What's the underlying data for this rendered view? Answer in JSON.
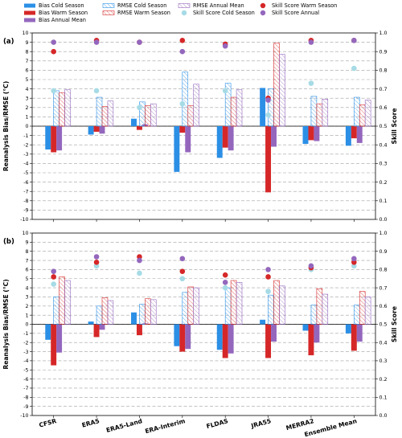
{
  "chart_data": [
    {
      "type": "bar",
      "panel_label": "(a)",
      "ylabel": "Reanalysis Bias/RMSE (°C)",
      "y2label": "Skill Score",
      "ylim": [
        -10,
        10
      ],
      "y2lim": [
        0.0,
        1.0
      ],
      "grid": "horizontal-dashed",
      "legend": "top",
      "categories": [
        "CFSR",
        "ERA5",
        "ERA5-Land",
        "ERA-Interim",
        "FLDAS",
        "JRA55",
        "MERRA2",
        "Ensemble Mean"
      ],
      "series": [
        {
          "name": "Bias Cold Season",
          "kind": "bar",
          "color": "#2b8fe6",
          "values": [
            -2.5,
            -0.9,
            0.8,
            -4.9,
            -3.4,
            4.1,
            -1.9,
            -2.1
          ]
        },
        {
          "name": "Bias Warm Season",
          "kind": "bar",
          "color": "#d62728",
          "values": [
            -2.8,
            -0.6,
            -0.4,
            -0.7,
            -2.3,
            -7.1,
            -1.5,
            -1.3
          ]
        },
        {
          "name": "Bias Annual Mean",
          "kind": "bar",
          "color": "#9467bd",
          "values": [
            -2.6,
            -0.8,
            0.2,
            -2.8,
            -2.6,
            -2.2,
            -1.6,
            -1.8
          ]
        },
        {
          "name": "RMSE Cold Season",
          "kind": "hatched",
          "color": "#2b8fe6",
          "values": [
            3.8,
            3.1,
            2.6,
            5.8,
            4.6,
            4.0,
            3.2,
            3.1
          ]
        },
        {
          "name": "RMSE Warm Season",
          "kind": "hatched",
          "color": "#d62728",
          "values": [
            3.6,
            2.1,
            2.2,
            2.2,
            3.1,
            8.9,
            2.4,
            2.3
          ]
        },
        {
          "name": "RMSE Annual Mean",
          "kind": "hatched",
          "color": "#9467bd",
          "values": [
            3.9,
            2.7,
            2.4,
            4.5,
            3.9,
            7.7,
            2.9,
            2.8
          ]
        },
        {
          "name": "Skill Score Cold Season",
          "kind": "dot",
          "color": "#a6dbe6",
          "values": [
            0.69,
            0.69,
            0.6,
            0.62,
            0.69,
            0.56,
            0.73,
            0.81
          ]
        },
        {
          "name": "Skill Score Warm Season",
          "kind": "dot",
          "color": "#d62728",
          "values": [
            0.9,
            0.96,
            0.95,
            0.96,
            0.94,
            0.65,
            0.96,
            0.96
          ]
        },
        {
          "name": "Skill Score Annual",
          "kind": "dot",
          "color": "#9467bd",
          "values": [
            0.95,
            0.95,
            0.95,
            0.9,
            0.93,
            0.64,
            0.95,
            0.96
          ]
        }
      ]
    },
    {
      "type": "bar",
      "panel_label": "(b)",
      "ylabel": "Reanalysis Bias/RMSE (°C)",
      "y2label": "Skill Score",
      "ylim": [
        -10,
        10
      ],
      "y2lim": [
        0.0,
        1.0
      ],
      "grid": "horizontal-dashed",
      "categories": [
        "CFSR",
        "ERA5",
        "ERA5-Land",
        "ERA-Interim",
        "FLDAS",
        "JRA55",
        "MERRA2",
        "Ensemble Mean"
      ],
      "series": [
        {
          "name": "Bias Cold Season",
          "kind": "bar",
          "color": "#2b8fe6",
          "values": [
            -1.7,
            0.3,
            1.3,
            -2.4,
            -2.8,
            0.5,
            -0.7,
            -1.0
          ]
        },
        {
          "name": "Bias Warm Season",
          "kind": "bar",
          "color": "#d62728",
          "values": [
            -4.5,
            -1.4,
            -1.2,
            -3.0,
            -3.7,
            -3.7,
            -3.4,
            -2.9
          ]
        },
        {
          "name": "Bias Annual Mean",
          "kind": "bar",
          "color": "#9467bd",
          "values": [
            -3.1,
            -0.6,
            0.1,
            -2.7,
            -3.2,
            -1.9,
            -2.0,
            -1.9
          ]
        },
        {
          "name": "RMSE Cold Season",
          "kind": "hatched",
          "color": "#2b8fe6",
          "values": [
            3.0,
            2.0,
            2.2,
            3.5,
            4.0,
            3.2,
            2.1,
            2.1
          ]
        },
        {
          "name": "RMSE Warm Season",
          "kind": "hatched",
          "color": "#d62728",
          "values": [
            5.2,
            2.9,
            2.8,
            4.1,
            4.8,
            4.8,
            3.9,
            3.6
          ]
        },
        {
          "name": "RMSE Annual Mean",
          "kind": "hatched",
          "color": "#9467bd",
          "values": [
            4.8,
            2.6,
            2.7,
            4.0,
            4.6,
            4.2,
            3.3,
            3.0
          ]
        },
        {
          "name": "Skill Score Cold Season",
          "kind": "dot",
          "color": "#a6dbe6",
          "values": [
            0.72,
            0.82,
            0.78,
            0.75,
            0.7,
            0.68,
            0.8,
            0.82
          ]
        },
        {
          "name": "Skill Score Warm Season",
          "kind": "dot",
          "color": "#d62728",
          "values": [
            0.76,
            0.84,
            0.87,
            0.79,
            0.77,
            0.76,
            0.81,
            0.84
          ]
        },
        {
          "name": "Skill Score Annual",
          "kind": "dot",
          "color": "#9467bd",
          "values": [
            0.79,
            0.87,
            0.85,
            0.86,
            0.73,
            0.8,
            0.82,
            0.86
          ]
        }
      ]
    }
  ]
}
